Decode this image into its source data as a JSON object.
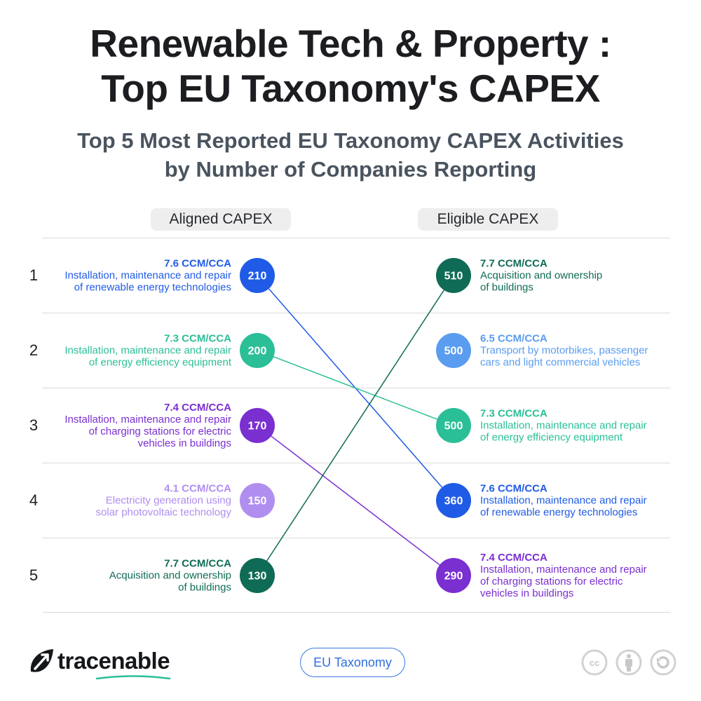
{
  "title": {
    "line1": "Renewable Tech & Property :",
    "line2": "Top EU Taxonomy's  CAPEX"
  },
  "subtitle": {
    "line1": "Top 5 Most Reported EU Taxonomy CAPEX Activities",
    "line2": "by Number of Companies Reporting"
  },
  "columns": {
    "left": "Aligned CAPEX",
    "right": "Eligible CAPEX"
  },
  "ranks": [
    "1",
    "2",
    "3",
    "4",
    "5"
  ],
  "chart_data": {
    "type": "slope",
    "title": "Top 5 Most Reported EU Taxonomy CAPEX Activities by Number of Companies Reporting",
    "left_series": "Aligned CAPEX",
    "right_series": "Eligible CAPEX",
    "aligned": [
      {
        "rank": 1,
        "code": "7.6 CCM/CCA",
        "label": [
          "Installation, maintenance and repair",
          "of renewable energy technologies"
        ],
        "value": 210,
        "color": "#1f5be6"
      },
      {
        "rank": 2,
        "code": "7.3 CCM/CCA",
        "label": [
          "Installation, maintenance and repair",
          "of energy efficiency equipment"
        ],
        "value": 200,
        "color": "#2bbf97"
      },
      {
        "rank": 3,
        "code": "7.4 CCM/CCA",
        "label": [
          "Installation, maintenance and repair",
          "of charging stations for electric",
          "vehicles in buildings"
        ],
        "value": 170,
        "color": "#7a2fd1"
      },
      {
        "rank": 4,
        "code": "4.1 CCM/CCA",
        "label": [
          "Electricity generation using",
          "solar photovoltaic technology"
        ],
        "value": 150,
        "color": "#b08ef0"
      },
      {
        "rank": 5,
        "code": "7.7 CCM/CCA",
        "label": [
          "Acquisition and ownership",
          "of buildings"
        ],
        "value": 130,
        "color": "#0f6b55"
      }
    ],
    "eligible": [
      {
        "rank": 1,
        "code": "7.7 CCM/CCA",
        "label": [
          "Acquisition and ownership",
          "of buildings"
        ],
        "value": 510,
        "color": "#0f6b55"
      },
      {
        "rank": 2,
        "code": "6.5 CCM/CCA",
        "label": [
          "Transport by motorbikes, passenger",
          "cars and light commercial vehicles"
        ],
        "value": 500,
        "color": "#5a9cf0"
      },
      {
        "rank": 3,
        "code": "7.3 CCM/CCA",
        "label": [
          "Installation, maintenance and repair",
          "of energy efficiency equipment"
        ],
        "value": 500,
        "color": "#2bbf97"
      },
      {
        "rank": 4,
        "code": "7.6 CCM/CCA",
        "label": [
          "Installation, maintenance and repair",
          "of renewable energy technologies"
        ],
        "value": 360,
        "color": "#1f5be6"
      },
      {
        "rank": 5,
        "code": "7.4 CCM/CCA",
        "label": [
          "Installation, maintenance and repair",
          "of charging stations for electric",
          "vehicles in buildings"
        ],
        "value": 290,
        "color": "#7a2fd1"
      }
    ],
    "links": [
      {
        "code": "7.6 CCM/CCA",
        "from_rank": 1,
        "to_rank": 4,
        "color": "#1f5be6"
      },
      {
        "code": "7.3 CCM/CCA",
        "from_rank": 2,
        "to_rank": 3,
        "color": "#2bbf97"
      },
      {
        "code": "7.4 CCM/CCA",
        "from_rank": 3,
        "to_rank": 5,
        "color": "#7a2fd1"
      },
      {
        "code": "7.7 CCM/CCA",
        "from_rank": 5,
        "to_rank": 1,
        "color": "#0f6b55"
      }
    ]
  },
  "footer": {
    "brand": "tracenable",
    "tag": "EU Taxonomy",
    "license_icons": [
      "cc-icon",
      "attribution-icon",
      "share-alike-icon"
    ],
    "brand_color": "#15171a",
    "accent_color": "#2bbf97"
  }
}
